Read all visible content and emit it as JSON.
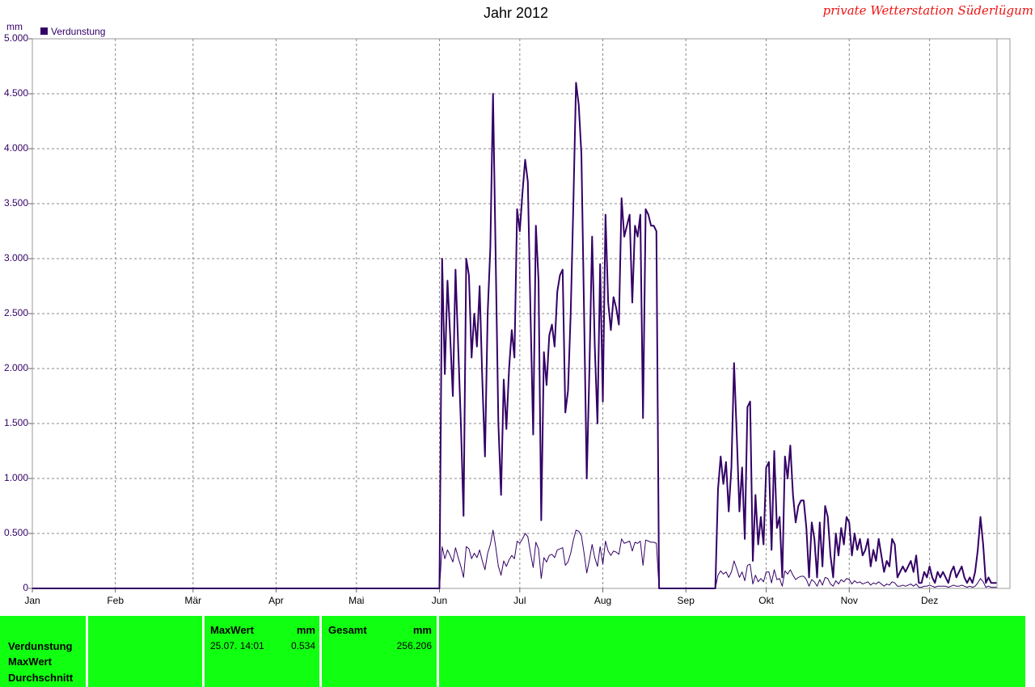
{
  "chart_data": {
    "type": "line",
    "title": "Jahr 2012",
    "subtitle": "private Wetterstation Süderlügum",
    "y_label": "mm",
    "grid": true,
    "xlim": [
      1,
      366
    ],
    "ylim": [
      0,
      5
    ],
    "xticks": [
      {
        "value": 1,
        "label": "Jan"
      },
      {
        "value": 32,
        "label": "Feb"
      },
      {
        "value": 61,
        "label": "Mär"
      },
      {
        "value": 92,
        "label": "Apr"
      },
      {
        "value": 122,
        "label": "Mai"
      },
      {
        "value": 153,
        "label": "Jun"
      },
      {
        "value": 183,
        "label": "Jul"
      },
      {
        "value": 214,
        "label": "Aug"
      },
      {
        "value": 245,
        "label": "Sep"
      },
      {
        "value": 275,
        "label": "Okt"
      },
      {
        "value": 306,
        "label": "Nov"
      },
      {
        "value": 336,
        "label": "Dez"
      }
    ],
    "yticks": [
      0,
      {
        "value": 0.5,
        "label": "0.500"
      },
      {
        "value": 1,
        "label": "1.000"
      },
      {
        "value": 1.5,
        "label": "1.500"
      },
      {
        "value": 2,
        "label": "2.000"
      },
      {
        "value": 2.5,
        "label": "2.500"
      },
      {
        "value": 3,
        "label": "3.000"
      },
      {
        "value": 3.5,
        "label": "3.500"
      },
      {
        "value": 4,
        "label": "4.000"
      },
      {
        "value": 4.5,
        "label": "4.500"
      },
      {
        "value": 5,
        "label": "5.000"
      }
    ],
    "x": [
      1,
      152,
      153,
      154,
      155,
      156,
      157,
      158,
      159,
      160,
      161,
      162,
      163,
      164,
      165,
      166,
      167,
      168,
      169,
      170,
      171,
      172,
      173,
      174,
      175,
      176,
      177,
      178,
      179,
      180,
      181,
      182,
      183,
      184,
      185,
      186,
      187,
      188,
      189,
      190,
      191,
      192,
      193,
      194,
      195,
      196,
      197,
      198,
      199,
      200,
      201,
      202,
      203,
      204,
      205,
      206,
      207,
      208,
      209,
      210,
      211,
      212,
      213,
      214,
      215,
      216,
      217,
      218,
      219,
      220,
      221,
      222,
      223,
      224,
      225,
      226,
      227,
      228,
      229,
      230,
      231,
      232,
      233,
      234,
      235,
      256,
      257,
      258,
      259,
      260,
      261,
      262,
      263,
      264,
      265,
      266,
      267,
      268,
      269,
      270,
      271,
      272,
      273,
      274,
      275,
      276,
      277,
      278,
      279,
      280,
      281,
      282,
      283,
      284,
      285,
      286,
      287,
      288,
      289,
      290,
      291,
      292,
      293,
      294,
      295,
      296,
      297,
      298,
      299,
      300,
      301,
      302,
      303,
      304,
      305,
      306,
      307,
      308,
      309,
      310,
      311,
      312,
      313,
      314,
      315,
      316,
      317,
      318,
      319,
      320,
      321,
      322,
      323,
      324,
      325,
      326,
      327,
      328,
      329,
      330,
      331,
      332,
      333,
      334,
      335,
      336,
      337,
      338,
      339,
      340,
      341,
      342,
      343,
      344,
      345,
      346,
      347,
      348,
      349,
      350,
      351,
      352,
      353,
      354,
      355,
      356,
      357,
      358,
      359,
      360,
      361
    ],
    "series": [
      {
        "name": "Verdunstung",
        "color": "#330066",
        "values": [
          0,
          0,
          0,
          3.0,
          1.95,
          2.8,
          2.3,
          1.75,
          2.9,
          2.2,
          1.5,
          0.66,
          3.0,
          2.85,
          2.1,
          2.5,
          2.2,
          2.75,
          1.9,
          1.2,
          2.5,
          3.1,
          4.5,
          3.0,
          1.5,
          0.85,
          1.9,
          1.45,
          2.0,
          2.35,
          2.1,
          3.45,
          3.25,
          3.6,
          3.9,
          3.7,
          2.5,
          1.4,
          3.3,
          2.8,
          0.62,
          2.15,
          1.85,
          2.3,
          2.4,
          2.2,
          2.7,
          2.85,
          2.9,
          1.6,
          1.8,
          2.5,
          3.5,
          4.6,
          4.4,
          3.95,
          2.5,
          1.0,
          2.0,
          3.2,
          2.2,
          1.5,
          2.95,
          1.7,
          3.4,
          2.6,
          2.35,
          2.65,
          2.55,
          2.4,
          3.55,
          3.2,
          3.3,
          3.4,
          2.6,
          3.3,
          3.2,
          3.4,
          1.55,
          3.45,
          3.4,
          3.3,
          3.3,
          3.25,
          0,
          0,
          0.9,
          1.2,
          0.95,
          1.15,
          0.7,
          1.1,
          2.05,
          1.4,
          0.7,
          1.1,
          0.45,
          1.65,
          1.7,
          0.25,
          0.85,
          0.4,
          0.65,
          0.4,
          1.1,
          1.15,
          0.35,
          1.25,
          0.55,
          0.65,
          0.1,
          1.2,
          1.0,
          1.3,
          0.85,
          0.6,
          0.75,
          0.8,
          0.8,
          0.55,
          0.1,
          0.6,
          0.45,
          0.1,
          0.6,
          0.2,
          0.75,
          0.65,
          0.3,
          0.1,
          0.5,
          0.3,
          0.55,
          0.4,
          0.65,
          0.6,
          0.3,
          0.5,
          0.35,
          0.45,
          0.3,
          0.35,
          0.45,
          0.2,
          0.35,
          0.25,
          0.45,
          0.3,
          0.15,
          0.25,
          0.2,
          0.45,
          0.4,
          0.1,
          0.15,
          0.2,
          0.15,
          0.2,
          0.25,
          0.15,
          0.3,
          0.05,
          0.05,
          0.15,
          0.1,
          0.2,
          0.1,
          0.05,
          0.15,
          0.1,
          0.15,
          0.1,
          0.05,
          0.15,
          0.2,
          0.1,
          0.15,
          0.2,
          0.1,
          0.05,
          0.1,
          0.05,
          0.15,
          0.35,
          0.65,
          0.4,
          0.05,
          0.1,
          0.05,
          0.05,
          0.05
        ]
      },
      {
        "color": "#330066",
        "values": [
          0,
          0,
          0,
          0.38,
          0.27,
          0.35,
          0.3,
          0.24,
          0.37,
          0.28,
          0.2,
          0.1,
          0.38,
          0.36,
          0.27,
          0.32,
          0.28,
          0.35,
          0.25,
          0.17,
          0.32,
          0.4,
          0.53,
          0.38,
          0.2,
          0.12,
          0.25,
          0.2,
          0.26,
          0.3,
          0.27,
          0.43,
          0.41,
          0.45,
          0.5,
          0.47,
          0.32,
          0.19,
          0.42,
          0.36,
          0.09,
          0.28,
          0.24,
          0.3,
          0.31,
          0.28,
          0.35,
          0.36,
          0.37,
          0.21,
          0.24,
          0.32,
          0.44,
          0.53,
          0.52,
          0.48,
          0.32,
          0.14,
          0.26,
          0.4,
          0.28,
          0.2,
          0.38,
          0.22,
          0.43,
          0.34,
          0.3,
          0.34,
          0.33,
          0.31,
          0.45,
          0.41,
          0.42,
          0.43,
          0.34,
          0.42,
          0.41,
          0.43,
          0.21,
          0.44,
          0.43,
          0.42,
          0.42,
          0.41,
          0,
          0,
          0.12,
          0.16,
          0.13,
          0.15,
          0.1,
          0.15,
          0.25,
          0.18,
          0.1,
          0.15,
          0.07,
          0.21,
          0.22,
          0.04,
          0.12,
          0.06,
          0.09,
          0.06,
          0.15,
          0.15,
          0.05,
          0.17,
          0.08,
          0.09,
          0.02,
          0.16,
          0.13,
          0.17,
          0.12,
          0.08,
          0.1,
          0.11,
          0.11,
          0.08,
          0.02,
          0.08,
          0.06,
          0.02,
          0.08,
          0.03,
          0.1,
          0.09,
          0.04,
          0.02,
          0.07,
          0.04,
          0.08,
          0.06,
          0.09,
          0.08,
          0.04,
          0.07,
          0.05,
          0.06,
          0.04,
          0.05,
          0.06,
          0.03,
          0.05,
          0.04,
          0.06,
          0.04,
          0.02,
          0.04,
          0.03,
          0.06,
          0.05,
          0.02,
          0.02,
          0.03,
          0.02,
          0.03,
          0.04,
          0.02,
          0.04,
          0.01,
          0.01,
          0.02,
          0.02,
          0.03,
          0.02,
          0.01,
          0.02,
          0.02,
          0.02,
          0.02,
          0.01,
          0.02,
          0.03,
          0.02,
          0.02,
          0.03,
          0.02,
          0.01,
          0.02,
          0.01,
          0.02,
          0.05,
          0.09,
          0.06,
          0.01,
          0.02,
          0.01,
          0.01,
          0.01
        ]
      }
    ]
  },
  "table": {
    "row_labels": [
      "Verdunstung",
      "MaxWert",
      "Durchschnitt"
    ],
    "max": {
      "title": "MaxWert",
      "unit": "mm",
      "time": "25.07. 14:01",
      "value": "0.534"
    },
    "total": {
      "title": "Gesamt",
      "unit": "mm",
      "value": "256.206"
    }
  }
}
